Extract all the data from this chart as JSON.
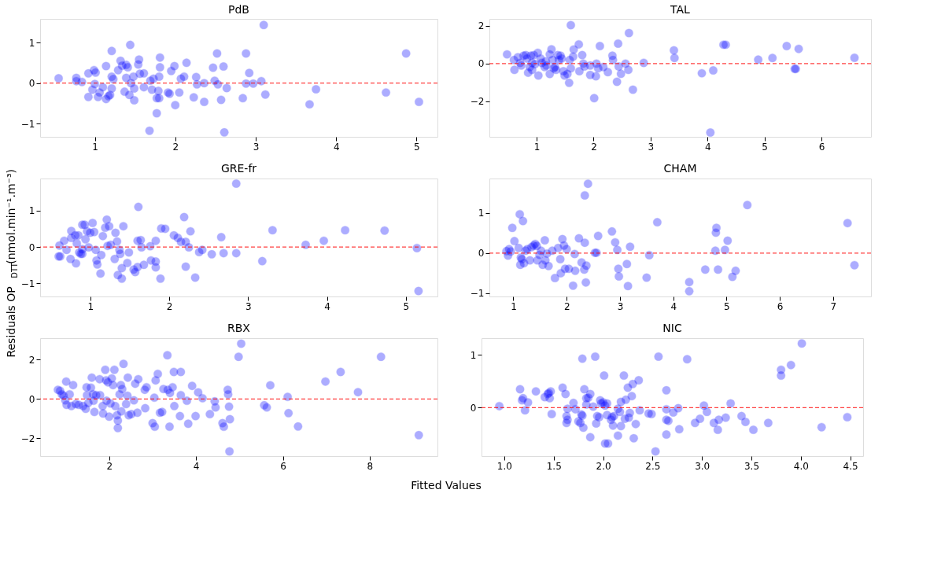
{
  "chart_data": [
    {
      "type": "scatter",
      "title": "PdB",
      "color": "#0000ff",
      "marker": "circle",
      "grid": false,
      "xlim": [
        0.32,
        5.26
      ],
      "ylim": [
        -1.32,
        1.58
      ],
      "xticks": [
        1,
        2,
        3,
        4,
        5
      ],
      "yticks": [
        -1,
        0,
        1
      ],
      "ref_lines": [
        {
          "axis": "y",
          "value": 0,
          "color": "#ff0000",
          "line_style": "dashed"
        }
      ],
      "x": [
        0.55,
        0.77,
        0.77,
        0.84,
        0.92,
        0.99,
        1.01,
        0.92,
        0.97,
        1.0,
        1.04,
        1.06,
        1.1,
        1.14,
        1.14,
        1.17,
        1.19,
        1.21,
        1.21,
        1.21,
        1.23,
        1.29,
        1.32,
        1.34,
        1.37,
        1.39,
        1.39,
        1.41,
        1.44,
        1.45,
        1.43,
        1.49,
        1.48,
        1.49,
        1.54,
        1.55,
        1.56,
        1.61,
        1.61,
        1.69,
        1.71,
        1.68,
        1.73,
        1.77,
        1.77,
        1.8,
        1.81,
        1.81,
        1.8,
        1.79,
        1.91,
        1.93,
        1.95,
        1.99,
        2.0,
        2.05,
        2.07,
        2.11,
        2.14,
        2.23,
        2.26,
        2.27,
        2.36,
        2.36,
        2.47,
        2.49,
        2.52,
        2.53,
        2.57,
        2.6,
        2.61,
        2.64,
        2.84,
        2.88,
        2.88,
        2.92,
        2.97,
        3.07,
        3.1,
        3.12,
        3.67,
        3.75,
        4.62,
        4.87,
        5.03
      ],
      "values": [
        0.12,
        0.13,
        0.05,
        0.03,
        0.24,
        0.32,
        0.26,
        -0.34,
        -0.16,
        -0.02,
        -0.34,
        -0.23,
        -0.1,
        0.42,
        -0.39,
        -0.32,
        -0.29,
        0.16,
        0.79,
        -0.13,
        0.1,
        0.32,
        0.55,
        0.43,
        -0.21,
        0.13,
        0.45,
        0.39,
        0.94,
        0.0,
        -0.29,
        -0.42,
        0.16,
        -0.13,
        0.46,
        0.58,
        0.23,
        0.24,
        -0.1,
        0.06,
        -0.16,
        -1.17,
        0.11,
        -0.74,
        -0.37,
        0.16,
        0.39,
        0.63,
        -0.37,
        -0.19,
        -0.23,
        -0.26,
        0.3,
        0.42,
        -0.54,
        -0.23,
        0.11,
        0.16,
        0.5,
        -0.35,
        0.15,
        -0.03,
        0.0,
        -0.46,
        0.38,
        0.06,
        0.73,
        -0.03,
        -0.41,
        0.41,
        -1.21,
        -0.12,
        -0.37,
        0.73,
        -0.01,
        0.25,
        -0.01,
        0.05,
        1.43,
        -0.28,
        -0.52,
        -0.15,
        -0.23,
        0.73,
        -0.46
      ]
    },
    {
      "type": "scatter",
      "title": "TAL",
      "color": "#0000ff",
      "marker": "circle",
      "grid": false,
      "xlim": [
        0.17,
        6.87
      ],
      "ylim": [
        -3.88,
        2.37
      ],
      "xticks": [
        1,
        2,
        3,
        4,
        5,
        6
      ],
      "yticks": [
        -2,
        0,
        2
      ],
      "ref_lines": [
        {
          "axis": "y",
          "value": 0,
          "color": "#ff0000",
          "line_style": "dashed"
        }
      ],
      "x": [
        0.48,
        0.6,
        0.61,
        0.67,
        0.71,
        0.77,
        0.81,
        0.83,
        0.85,
        0.88,
        0.9,
        0.92,
        0.95,
        0.97,
        1.02,
        1.03,
        1.07,
        1.09,
        1.14,
        1.16,
        1.23,
        1.23,
        1.26,
        1.28,
        1.3,
        1.34,
        1.37,
        1.42,
        1.44,
        1.47,
        1.49,
        1.54,
        1.57,
        1.58,
        1.6,
        1.6,
        1.64,
        1.65,
        1.74,
        1.75,
        1.8,
        1.82,
        1.84,
        1.94,
        1.94,
        2.01,
        2.04,
        2.05,
        2.08,
        2.11,
        2.17,
        2.25,
        2.33,
        2.34,
        2.41,
        2.43,
        2.44,
        2.48,
        2.56,
        2.61,
        2.62,
        2.69,
        2.88,
        3.41,
        3.42,
        3.9,
        4.1,
        4.05,
        4.28,
        4.32,
        4.89,
        5.14,
        5.39,
        5.53,
        5.55,
        5.6,
        6.58,
        0.73,
        0.92,
        1.17,
        1.32,
        1.39
      ],
      "values": [
        0.49,
        0.19,
        -0.33,
        0.34,
        0.04,
        0.42,
        0.45,
        0.27,
        -0.48,
        -0.18,
        0.42,
        0.04,
        0.45,
        -0.03,
        0.57,
        -0.63,
        0.27,
        0.04,
        -0.18,
        0.12,
        0.49,
        -0.55,
        0.76,
        0.19,
        -0.25,
        -0.33,
        0.45,
        0.42,
        0.27,
        -0.4,
        -0.63,
        -0.55,
        -1.02,
        0.19,
        2.04,
        -0.25,
        0.37,
        0.75,
        1.02,
        -0.4,
        0.45,
        0.0,
        -0.15,
        -0.1,
        -0.6,
        -1.83,
        -0.67,
        0.0,
        -0.25,
        0.93,
        -0.18,
        -0.45,
        0.42,
        0.19,
        -0.96,
        1.06,
        -0.15,
        -0.54,
        0.0,
        -0.33,
        1.62,
        -1.38,
        0.04,
        0.7,
        0.3,
        -0.51,
        -0.36,
        -3.65,
        1.0,
        1.0,
        0.21,
        0.3,
        0.93,
        -0.28,
        -0.28,
        0.78,
        0.31,
        -0.1,
        -0.33,
        -0.1,
        -0.18,
        0.19
      ]
    },
    {
      "type": "scatter",
      "title": "GRE-fr",
      "ylabel": "Residuals OP$_{DTT}$(nmol.min⁻¹.m⁻³)",
      "color": "#0000ff",
      "marker": "circle",
      "grid": false,
      "xlim": [
        0.365,
        5.4
      ],
      "ylim": [
        -1.36,
        1.88
      ],
      "xticks": [
        1,
        2,
        3,
        4,
        5
      ],
      "yticks": [
        -1,
        0,
        1
      ],
      "ref_lines": [
        {
          "axis": "y",
          "value": 0,
          "color": "#ff0000",
          "line_style": "dashed"
        }
      ],
      "x": [
        0.6,
        0.62,
        0.61,
        0.67,
        0.7,
        0.75,
        0.76,
        0.76,
        0.81,
        0.82,
        0.83,
        0.85,
        0.88,
        0.9,
        0.9,
        0.93,
        0.94,
        0.96,
        0.98,
        1.0,
        1.03,
        1.05,
        1.07,
        1.08,
        1.09,
        1.13,
        1.14,
        1.16,
        1.19,
        1.21,
        1.22,
        1.24,
        1.26,
        1.31,
        1.32,
        1.34,
        1.37,
        1.38,
        1.4,
        1.35,
        1.4,
        1.42,
        1.47,
        1.49,
        1.55,
        1.57,
        1.6,
        1.61,
        1.6,
        1.64,
        1.65,
        1.68,
        1.76,
        1.77,
        1.83,
        1.83,
        1.83,
        1.89,
        1.9,
        1.95,
        2.06,
        2.11,
        2.15,
        2.19,
        2.21,
        2.21,
        2.25,
        2.27,
        2.33,
        2.38,
        2.42,
        2.54,
        2.66,
        2.69,
        2.85,
        2.85,
        3.18,
        3.31,
        3.73,
        3.96,
        4.23,
        4.73,
        5.14,
        5.16,
        0.86,
        0.9
      ],
      "values": [
        -0.26,
        -0.26,
        0.04,
        0.17,
        -0.08,
        -0.33,
        0.44,
        0.25,
        0.32,
        -0.45,
        0.1,
        0.32,
        -0.19,
        0.61,
        -0.06,
        0.61,
        0.21,
        0.43,
        -0.01,
        0.39,
        0.66,
        0.41,
        -0.08,
        -0.37,
        -0.48,
        -0.73,
        -0.22,
        0.3,
        0.53,
        0.75,
        0.03,
        0.57,
        0.06,
        -0.33,
        0.39,
        0.15,
        -0.08,
        -0.19,
        -0.58,
        -0.77,
        -0.87,
        0.57,
        -0.44,
        -0.15,
        -0.62,
        -0.69,
        -0.55,
        1.1,
        0.17,
        0.19,
        -0.01,
        -0.49,
        0.02,
        -0.37,
        -0.4,
        0.17,
        -0.56,
        -0.87,
        0.51,
        0.5,
        0.32,
        0.25,
        0.14,
        0.82,
        0.14,
        -0.54,
        -0.01,
        0.43,
        -0.84,
        -0.14,
        -0.08,
        -0.2,
        0.27,
        -0.17,
        1.74,
        -0.17,
        -0.39,
        0.46,
        0.06,
        0.17,
        0.46,
        0.45,
        -0.03,
        -1.21,
        -0.15,
        -0.19
      ]
    },
    {
      "type": "scatter",
      "title": "CHAM",
      "color": "#0000ff",
      "marker": "circle",
      "grid": false,
      "xlim": [
        0.55,
        7.71
      ],
      "ylim": [
        -1.08,
        1.86
      ],
      "xticks": [
        1,
        2,
        3,
        4,
        5,
        6,
        7
      ],
      "yticks": [
        -1,
        0,
        1
      ],
      "ref_lines": [
        {
          "axis": "y",
          "value": 0,
          "color": "#ff0000",
          "line_style": "dashed"
        }
      ],
      "x": [
        0.87,
        0.9,
        0.92,
        0.95,
        0.98,
        1.02,
        1.1,
        1.12,
        1.14,
        1.16,
        1.18,
        1.13,
        1.2,
        1.23,
        1.26,
        1.31,
        1.34,
        1.38,
        1.41,
        1.44,
        1.45,
        1.49,
        1.52,
        1.55,
        1.59,
        1.6,
        1.63,
        1.66,
        1.73,
        1.78,
        1.84,
        1.88,
        1.89,
        1.92,
        1.95,
        1.97,
        2.0,
        2.04,
        2.12,
        2.15,
        2.16,
        2.23,
        2.28,
        2.33,
        2.34,
        2.34,
        2.36,
        2.37,
        2.4,
        2.53,
        2.56,
        2.59,
        2.85,
        2.91,
        2.95,
        2.97,
        2.98,
        3.13,
        3.15,
        3.19,
        3.5,
        3.55,
        3.7,
        4.3,
        4.3,
        4.6,
        4.79,
        4.8,
        4.81,
        4.84,
        4.97,
        5.02,
        5.11,
        5.17,
        5.39,
        7.27,
        7.4
      ],
      "values": [
        0.05,
        -0.06,
        0.1,
        0.04,
        0.63,
        0.3,
        0.13,
        0.97,
        -0.11,
        -0.15,
        0.8,
        -0.29,
        -0.25,
        0.06,
        0.1,
        -0.18,
        0.15,
        0.19,
        0.23,
        0.18,
        -0.18,
        -0.04,
        0.06,
        -0.29,
        0.32,
        -0.18,
        -0.01,
        -0.32,
        0.06,
        -0.62,
        0.13,
        -0.15,
        -0.5,
        0.35,
        0.19,
        -0.39,
        0.1,
        -0.39,
        -0.81,
        -0.02,
        -0.44,
        0.37,
        -0.23,
        -0.41,
        1.44,
        0.26,
        -0.73,
        -0.31,
        1.73,
        0.01,
        0.01,
        0.43,
        0.54,
        0.27,
        0.08,
        -0.39,
        -0.58,
        -0.27,
        -0.82,
        0.16,
        -0.61,
        -0.05,
        0.77,
        -0.72,
        -0.95,
        -0.41,
        0.06,
        0.51,
        0.63,
        -0.41,
        0.08,
        0.31,
        -0.59,
        -0.44,
        1.2,
        0.75,
        -0.3
      ]
    },
    {
      "type": "scatter",
      "title": "RBX",
      "xlabel": "Fitted Values",
      "color": "#0000ff",
      "marker": "circle",
      "grid": false,
      "xlim": [
        0.41,
        9.56
      ],
      "ylim": [
        -2.91,
        3.1
      ],
      "xticks": [
        2,
        4,
        6,
        8
      ],
      "yticks": [
        -2,
        0,
        2
      ],
      "ref_lines": [
        {
          "axis": "y",
          "value": 0,
          "color": "#ff0000",
          "line_style": "dashed"
        }
      ],
      "x": [
        0.82,
        0.87,
        0.91,
        0.95,
        0.99,
        1.01,
        1.02,
        1.09,
        1.13,
        1.17,
        1.23,
        1.3,
        1.4,
        1.46,
        1.48,
        1.49,
        1.52,
        1.58,
        1.6,
        1.63,
        1.64,
        1.66,
        1.7,
        1.78,
        1.79,
        1.85,
        1.86,
        1.91,
        1.93,
        1.94,
        1.97,
        2.0,
        2.03,
        2.06,
        2.09,
        2.12,
        2.14,
        2.18,
        2.2,
        2.2,
        2.24,
        2.27,
        2.28,
        2.3,
        2.33,
        2.39,
        2.42,
        2.43,
        2.45,
        2.51,
        2.57,
        2.6,
        2.65,
        2.67,
        2.82,
        2.83,
        2.86,
        3.0,
        3.04,
        3.05,
        3.07,
        3.12,
        3.17,
        3.22,
        3.25,
        3.34,
        3.35,
        3.39,
        3.4,
        3.46,
        3.49,
        3.5,
        3.65,
        3.63,
        3.65,
        3.79,
        3.82,
        3.91,
        3.99,
        4.05,
        4.15,
        4.32,
        4.43,
        4.45,
        4.61,
        4.64,
        4.73,
        4.74,
        4.76,
        4.77,
        4.78,
        4.98,
        5.04,
        5.57,
        5.63,
        5.71,
        6.11,
        6.13,
        6.35,
        6.98,
        7.33,
        7.73,
        8.26,
        9.13
      ],
      "values": [
        0.47,
        0.42,
        0.24,
        0.17,
        -0.07,
        0.89,
        -0.3,
        0.24,
        -0.36,
        0.71,
        -0.26,
        -0.3,
        -0.36,
        -0.5,
        0.6,
        0.2,
        -0.2,
        0.58,
        1.09,
        0.24,
        -0.09,
        -0.66,
        0.2,
        1.01,
        0.2,
        -0.36,
        -0.74,
        1.49,
        0.95,
        -0.09,
        0.85,
        -0.9,
        -0.23,
        1.05,
        0.71,
        1.49,
        -0.36,
        -0.83,
        -1.1,
        -1.48,
        0.24,
        0.71,
        -0.63,
        0.51,
        1.79,
        -0.26,
        0.17,
        1.09,
        -0.83,
        -0.77,
        -0.07,
        0.78,
        -0.7,
        1.01,
        0.47,
        -0.47,
        0.6,
        -1.23,
        0.07,
        -1.41,
        0.95,
        1.28,
        -0.7,
        -0.66,
        0.51,
        2.23,
        0.47,
        -1.41,
        0.31,
        0.6,
        1.38,
        -0.36,
        1.38,
        -0.87,
        0.2,
        -0.09,
        -1.26,
        0.67,
        -0.87,
        0.34,
        0.04,
        -0.77,
        -0.12,
        -0.43,
        -1.23,
        -1.41,
        0.47,
        0.24,
        -0.39,
        -2.67,
        -1.03,
        2.15,
        2.82,
        -0.32,
        -0.43,
        0.7,
        0.11,
        -0.72,
        -1.4,
        0.89,
        1.38,
        0.35,
        2.15,
        -1.84
      ]
    },
    {
      "type": "scatter",
      "title": "NIC",
      "color": "#0000ff",
      "marker": "circle",
      "grid": false,
      "xlim": [
        0.77,
        4.63
      ],
      "ylim": [
        -0.92,
        1.32
      ],
      "xticks": [
        {
          "value": 1,
          "label": "1.0"
        },
        1.5,
        {
          "value": 2,
          "label": "2.0"
        },
        2.5,
        {
          "value": 3,
          "label": "3.0"
        },
        3.5,
        {
          "value": 4,
          "label": "4.0"
        },
        4.5
      ],
      "yticks": [
        {
          "value": 0,
          "label": "0"
        },
        {
          "value": 1,
          "label": "1"
        }
      ],
      "ref_lines": [
        {
          "axis": "y",
          "value": 0,
          "color": "#ff0000",
          "line_style": "dashed"
        }
      ],
      "x": [
        0.95,
        1.16,
        1.18,
        1.19,
        1.21,
        1.24,
        1.32,
        1.41,
        1.44,
        1.45,
        1.46,
        1.47,
        1.48,
        1.59,
        1.62,
        1.63,
        1.63,
        1.64,
        1.64,
        1.7,
        1.72,
        1.75,
        1.77,
        1.78,
        1.79,
        1.79,
        1.8,
        1.81,
        1.83,
        1.83,
        1.85,
        1.87,
        1.87,
        1.9,
        1.92,
        1.93,
        1.94,
        1.96,
        1.97,
        1.98,
        2.0,
        2.01,
        2.02,
        2.02,
        2.04,
        2.04,
        2.05,
        2.08,
        2.09,
        2.1,
        2.11,
        2.15,
        2.15,
        2.17,
        2.18,
        2.18,
        2.21,
        2.22,
        2.23,
        2.25,
        2.26,
        2.27,
        2.29,
        2.3,
        2.31,
        2.33,
        2.36,
        2.37,
        2.46,
        2.49,
        2.53,
        2.56,
        2.64,
        2.64,
        2.64,
        2.64,
        2.66,
        2.71,
        2.76,
        2.77,
        2.85,
        2.93,
        2.98,
        3.02,
        3.05,
        3.12,
        3.16,
        3.17,
        3.24,
        3.29,
        3.4,
        3.44,
        3.52,
        3.67,
        3.8,
        3.8,
        3.9,
        4.01,
        4.21,
        4.47
      ],
      "values": [
        0.03,
        0.35,
        0.14,
        0.18,
        -0.05,
        0.1,
        0.31,
        0.2,
        0.26,
        0.28,
        0.18,
        0.31,
        -0.12,
        0.38,
        0.26,
        -0.29,
        -0.16,
        -0.23,
        -0.02,
        0.09,
        -0.03,
        -0.26,
        -0.29,
        -0.13,
        -0.15,
        0.93,
        -0.38,
        0.35,
        0.18,
        0.06,
        0.19,
        -0.56,
        0.26,
        0.02,
        0.97,
        -0.3,
        -0.16,
        -0.18,
        0.14,
        0.08,
        0.1,
        0.61,
        0.04,
        -0.68,
        -0.14,
        0.08,
        -0.68,
        -0.23,
        -0.18,
        -0.34,
        -0.16,
        -0.53,
        -0.02,
        -0.08,
        -0.35,
        0.11,
        0.61,
        -0.21,
        0.15,
        0.38,
        -0.19,
        -0.1,
        0.22,
        0.45,
        -0.58,
        -0.31,
        0.52,
        -0.05,
        -0.11,
        -0.12,
        -0.83,
        0.97,
        0.33,
        -0.03,
        -0.23,
        -0.51,
        -0.25,
        -0.09,
        -0.01,
        -0.41,
        0.92,
        -0.29,
        -0.21,
        0.04,
        -0.08,
        -0.29,
        -0.42,
        -0.23,
        -0.19,
        0.08,
        -0.16,
        -0.27,
        -0.42,
        -0.29,
        0.72,
        0.61,
        0.81,
        1.22,
        -0.37,
        -0.18
      ]
    }
  ]
}
